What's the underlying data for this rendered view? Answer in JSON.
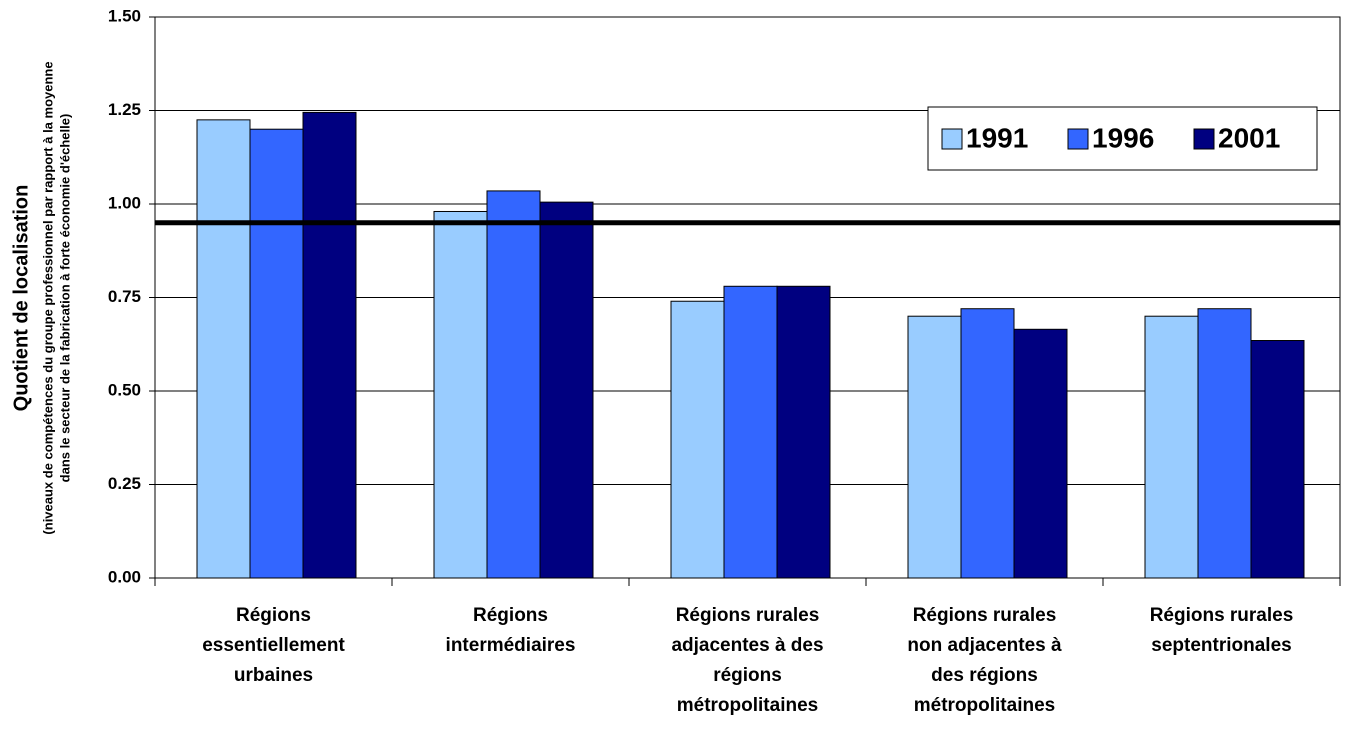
{
  "chart_data": {
    "type": "bar",
    "y_label": "Quotient de localisation",
    "y_label_note": [
      "(niveaux de compétences du groupe professionnel par rapport à la moyenne",
      "dans le secteur de la fabrication à forte économie d'échelle)"
    ],
    "categories": [
      [
        "Régions",
        "essentiellement",
        "urbaines"
      ],
      [
        "Régions",
        "intermédiaires"
      ],
      [
        "Régions rurales",
        "adjacentes à des",
        "régions",
        "métropolitaines"
      ],
      [
        "Régions rurales",
        "non adjacentes à",
        "des régions",
        "métropolitaines"
      ],
      [
        "Régions rurales",
        "septentrionales"
      ]
    ],
    "series": [
      {
        "name": "1991",
        "color": "#99ccff",
        "values": [
          1.225,
          0.98,
          0.74,
          0.7,
          0.7
        ]
      },
      {
        "name": "1996",
        "color": "#3366ff",
        "values": [
          1.2,
          1.035,
          0.78,
          0.72,
          0.72
        ]
      },
      {
        "name": "2001",
        "color": "#000080",
        "values": [
          1.245,
          1.005,
          0.78,
          0.665,
          0.635
        ]
      }
    ],
    "reference_line": 0.95,
    "ylim": [
      0,
      1.5
    ],
    "yticks": [
      {
        "value": 0,
        "label": "0.00"
      },
      {
        "value": 0.25,
        "label": "0.25"
      },
      {
        "value": 0.5,
        "label": "0.50"
      },
      {
        "value": 0.75,
        "label": "0.75"
      },
      {
        "value": 1,
        "label": "1.00"
      },
      {
        "value": 1.25,
        "label": "1.25"
      },
      {
        "value": 1.5,
        "label": "1.50"
      }
    ],
    "grid": true,
    "legend": "upper right"
  }
}
